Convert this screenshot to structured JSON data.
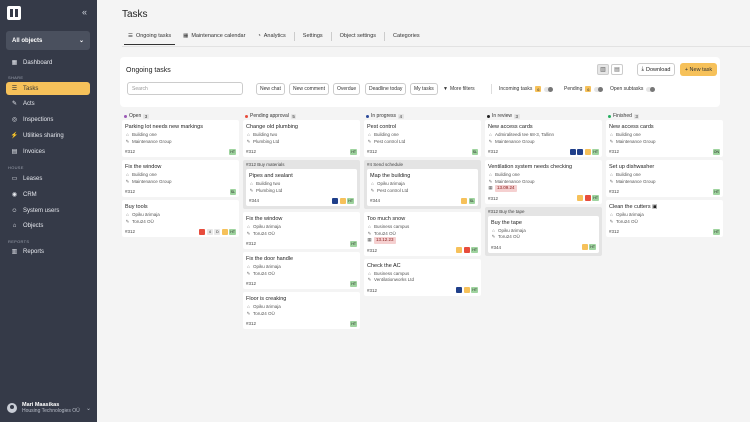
{
  "sidebar": {
    "object_selector": "All objects",
    "sections": {
      "share": "SHARE",
      "house": "HOUSE",
      "reports": "REPORTS"
    },
    "items": [
      {
        "label": "Dashboard",
        "icon": "dashboard-icon"
      },
      {
        "label": "Tasks",
        "icon": "tasks-icon"
      },
      {
        "label": "Acts",
        "icon": "acts-icon"
      },
      {
        "label": "Inspections",
        "icon": "inspections-icon"
      },
      {
        "label": "Utilities sharing",
        "icon": "utilities-icon"
      },
      {
        "label": "Invoices",
        "icon": "invoices-icon"
      },
      {
        "label": "Leases",
        "icon": "leases-icon"
      },
      {
        "label": "CRM",
        "icon": "crm-icon"
      },
      {
        "label": "System users",
        "icon": "users-icon"
      },
      {
        "label": "Objects",
        "icon": "objects-icon"
      },
      {
        "label": "Reports",
        "icon": "reports-icon"
      }
    ],
    "user": {
      "name": "Mari Maasikas",
      "org": "Housing Technologies OÜ"
    }
  },
  "page": {
    "title": "Tasks"
  },
  "tabs": [
    {
      "label": "Ongoing tasks",
      "active": true
    },
    {
      "label": "Maintenance calendar"
    },
    {
      "label": "Analytics"
    },
    {
      "label": "Settings"
    },
    {
      "label": "Object settings"
    },
    {
      "label": "Categories"
    }
  ],
  "toolbar": {
    "title": "Ongoing tasks",
    "download": "Download",
    "new_task": "+ New task",
    "search_placeholder": "Search",
    "chips": [
      "New chat",
      "New comment",
      "Overdue",
      "Deadline today",
      "My tasks"
    ],
    "more_filters": "More filters",
    "incoming": {
      "label": "Incoming tasks",
      "count": "6"
    },
    "pending": {
      "label": "Pending",
      "count": "6"
    },
    "open_subtasks": "Open subtasks"
  },
  "colors": {
    "accent": "#f6c15a",
    "sidebar": "#353a48",
    "open": "#9b59b6",
    "pending": "#e74c3c",
    "inprogress": "#2c4a9a",
    "inreview": "#222222",
    "finished": "#27ae60"
  },
  "columns": [
    {
      "label": "Open",
      "count": "3",
      "cards": [
        {
          "title": "Parking lot needs new markings",
          "lines": [
            {
              "i": "⌂",
              "t": "Building one"
            },
            {
              "i": "✎",
              "t": "Maintenance Group"
            }
          ],
          "id": "#312",
          "badges": [
            "HT"
          ]
        },
        {
          "title": "Fix the window",
          "lines": [
            {
              "i": "⌂",
              "t": "Building one"
            },
            {
              "i": "✎",
              "t": "Maintenance Group"
            }
          ],
          "id": "#312",
          "badges": [
            "SL"
          ]
        },
        {
          "title": "Buy tools",
          "lines": [
            {
              "i": "⌂",
              "t": "Opiku ärimaja"
            },
            {
              "i": "✎",
              "t": "Toru24 OÜ"
            }
          ],
          "id": "#312",
          "badges": [
            "red",
            "4",
            "D",
            "Y",
            "HT"
          ]
        }
      ]
    },
    {
      "label": "Pending approval",
      "count": "5",
      "cards": [
        {
          "title": "Change old plumbing",
          "lines": [
            {
              "i": "⌂",
              "t": "Building two"
            },
            {
              "i": "✎",
              "t": "Plumbing Ltd"
            }
          ],
          "id": "#312",
          "badges": [
            "HT"
          ]
        },
        {
          "group": "#312 Buy materials",
          "title": "Pipes and sealant",
          "lines": [
            {
              "i": "⌂",
              "t": "Building two"
            },
            {
              "i": "✎",
              "t": "Plumbing Ltd"
            }
          ],
          "id": "#344",
          "badges": [
            "B",
            "Y",
            "HT"
          ]
        },
        {
          "title": "Fix the window",
          "lines": [
            {
              "i": "⌂",
              "t": "Opiku ärimaja"
            },
            {
              "i": "✎",
              "t": "Toru24 OÜ"
            }
          ],
          "id": "#312",
          "badges": [
            "HT"
          ]
        },
        {
          "title": "Fix the door handle",
          "lines": [
            {
              "i": "⌂",
              "t": "Opiku ärimaja"
            },
            {
              "i": "✎",
              "t": "Toru24 OÜ"
            }
          ],
          "id": "#312",
          "badges": [
            "HT"
          ]
        },
        {
          "title": "Floor is creaking",
          "lines": [
            {
              "i": "⌂",
              "t": "Opiku ärimaja"
            },
            {
              "i": "✎",
              "t": "Toru24 OÜ"
            }
          ],
          "id": "#312",
          "badges": [
            "HT"
          ]
        }
      ]
    },
    {
      "label": "In progress",
      "count": "4",
      "cards": [
        {
          "title": "Pest control",
          "lines": [
            {
              "i": "⌂",
              "t": "Building one"
            },
            {
              "i": "✎",
              "t": "Pest control Ltd"
            }
          ],
          "id": "#312",
          "badges": [
            "SL"
          ]
        },
        {
          "group": "#4 Send schedule",
          "title": "Map the building",
          "lines": [
            {
              "i": "⌂",
              "t": "Opiku ärimaja"
            },
            {
              "i": "✎",
              "t": "Pest control Ltd"
            }
          ],
          "id": "#344",
          "badges": [
            "Y",
            "SL"
          ]
        },
        {
          "title": "Too much snow",
          "lines": [
            {
              "i": "⌂",
              "t": "Business campus"
            },
            {
              "i": "✎",
              "t": "Toru24 OÜ"
            }
          ],
          "date": "13.12.23",
          "id": "#312",
          "badges": [
            "Y",
            "red",
            "HT"
          ]
        },
        {
          "title": "Check the AC",
          "lines": [
            {
              "i": "⌂",
              "t": "Business campus"
            },
            {
              "i": "✎",
              "t": "Ventilationworks Ltd"
            }
          ],
          "id": "#312",
          "badges": [
            "B",
            "Y",
            "HT"
          ]
        }
      ]
    },
    {
      "label": "In review",
      "count": "3",
      "cards": [
        {
          "title": "New access cards",
          "lines": [
            {
              "i": "⌂",
              "t": "Admiraliteedi tee 68-3, Tallinn"
            },
            {
              "i": "✎",
              "t": "Maintenance Group"
            }
          ],
          "id": "#312",
          "badges": [
            "B",
            "B",
            "Y",
            "HT"
          ]
        },
        {
          "title": "Ventilation system needs checking",
          "lines": [
            {
              "i": "⌂",
              "t": "Building one"
            },
            {
              "i": "✎",
              "t": "Maintenance Group"
            }
          ],
          "date": "13.09.24",
          "id": "#312",
          "badges": [
            "Y",
            "red",
            "HT"
          ]
        },
        {
          "group": "#312 Buy the tape",
          "title": "Buy the tape",
          "lines": [
            {
              "i": "⌂",
              "t": "Opiku ärimaja"
            },
            {
              "i": "✎",
              "t": "Toru24 OÜ"
            }
          ],
          "id": "#344",
          "badges": [
            "Y",
            "HT"
          ]
        }
      ]
    },
    {
      "label": "Finished",
      "count": "3",
      "cards": [
        {
          "title": "New access cards",
          "lines": [
            {
              "i": "⌂",
              "t": "Building one"
            },
            {
              "i": "✎",
              "t": "Maintenance Group"
            }
          ],
          "id": "#312",
          "badges": [
            "ON"
          ]
        },
        {
          "title": "Set up dishwasher",
          "lines": [
            {
              "i": "⌂",
              "t": "Building one"
            },
            {
              "i": "✎",
              "t": "Maintenance Group"
            }
          ],
          "id": "#312",
          "badges": [
            "HT"
          ]
        },
        {
          "title": "Clean the cutters",
          "lines": [
            {
              "i": "⌂",
              "t": "Opiku ärimaja"
            },
            {
              "i": "✎",
              "t": "Toru24 OÜ"
            }
          ],
          "id": "#312",
          "badges": [
            "HT"
          ],
          "extra": "1"
        }
      ]
    }
  ]
}
